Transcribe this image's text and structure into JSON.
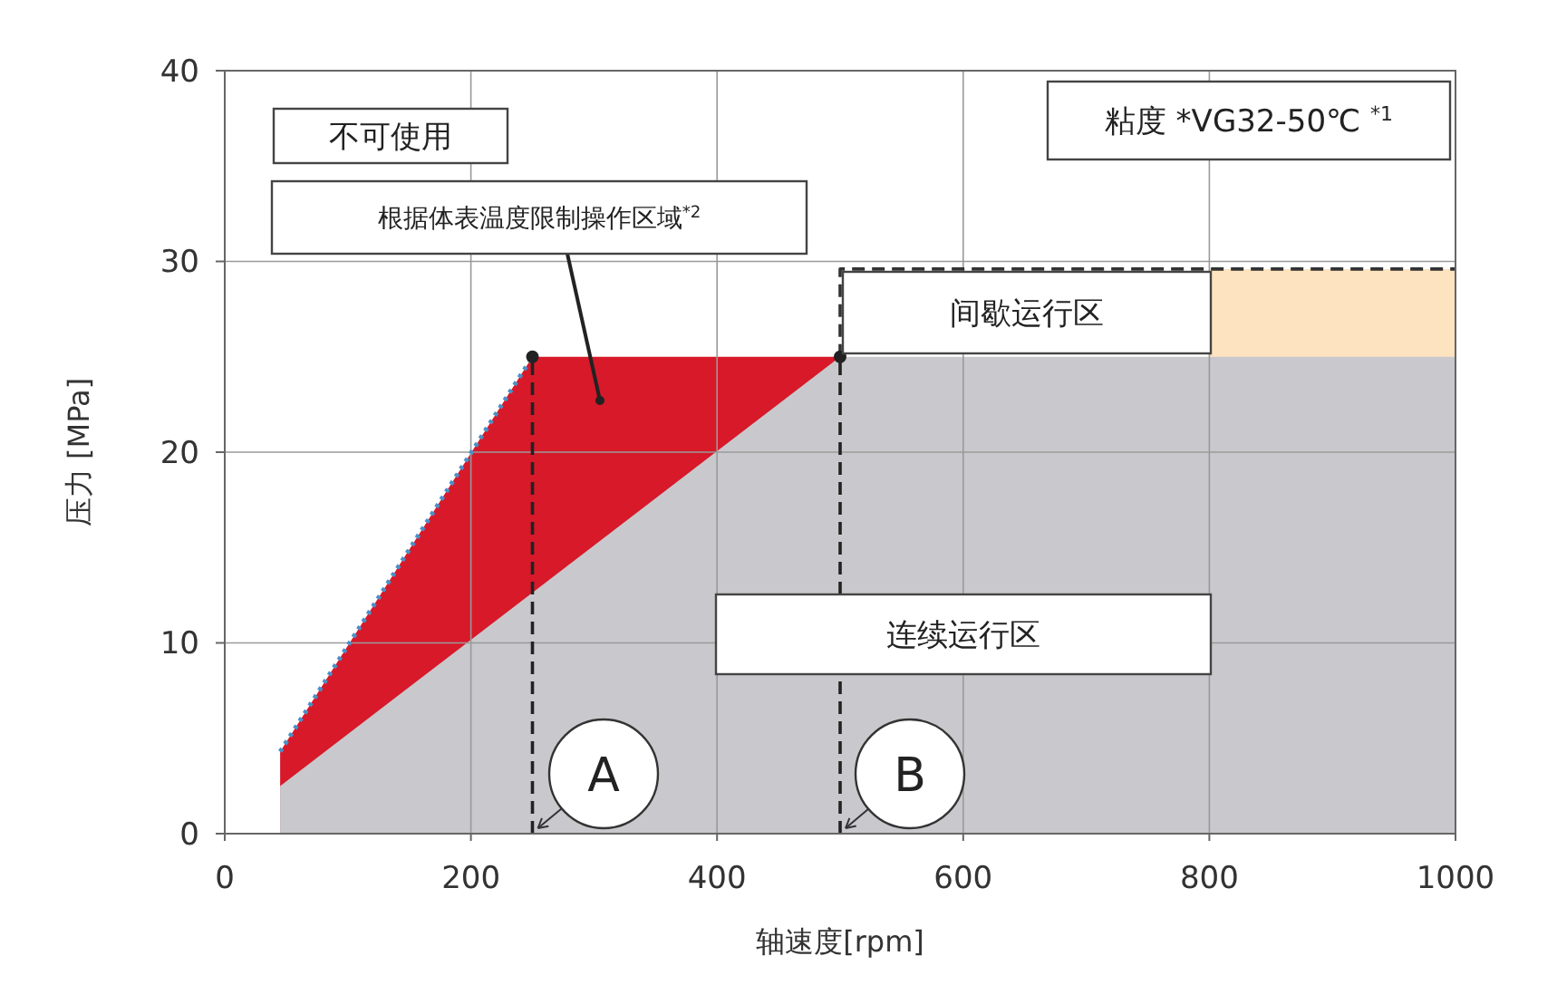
{
  "chart_data": {
    "type": "area",
    "xlabel": "轴速度[rpm]",
    "ylabel": "压力 [MPa]",
    "xlim": [
      0,
      1000
    ],
    "xticks": [
      0,
      200,
      400,
      600,
      800,
      1000
    ],
    "ylim": [
      0,
      40
    ],
    "yticks": [
      0,
      10,
      20,
      30,
      40
    ],
    "grid": true,
    "series": [
      {
        "color": "#fde3bf",
        "x": [
          800,
          1000
        ],
        "values": [
          29.6,
          29.6
        ]
      },
      {
        "color": "#d7192a",
        "x": [
          45,
          250,
          500
        ],
        "values": [
          4.3,
          25,
          25
        ]
      },
      {
        "color": "#c9c9cd",
        "x": [
          45,
          500,
          1000
        ],
        "values": [
          2.5,
          25,
          25
        ]
      },
      {
        "type": "line",
        "color": "#4a90c8",
        "x": [
          45,
          250
        ],
        "values": [
          4.3,
          25
        ],
        "line_style": "dotted",
        "marker": "none"
      },
      {
        "type": "line",
        "color": "#333333",
        "x": [
          500,
          500,
          1000
        ],
        "values": [
          25,
          29.6,
          29.6
        ],
        "line_style": "dashed",
        "marker": "none"
      },
      {
        "type": "line",
        "color": "#222222",
        "x": [
          250,
          250
        ],
        "values": [
          0,
          25
        ],
        "line_style": "dashed",
        "marker": "none"
      },
      {
        "type": "line",
        "color": "#222222",
        "x": [
          500,
          500
        ],
        "values": [
          0,
          25
        ],
        "line_style": "dashed",
        "marker": "none"
      },
      {
        "type": "scatter",
        "color": "#222222",
        "x": [
          250,
          500
        ],
        "values": [
          25,
          25
        ],
        "marker": "circle"
      }
    ],
    "annotations": [
      "不可使用",
      "根据体表温度限制操作区域$^{*2}$",
      "粘度 *VG32-50℃ $^{*1}$",
      "间歇运行区",
      "连续运行区",
      {
        "text": "A",
        "x": 250,
        "y": 0
      },
      {
        "text": "B",
        "x": 500,
        "y": 0
      }
    ]
  }
}
